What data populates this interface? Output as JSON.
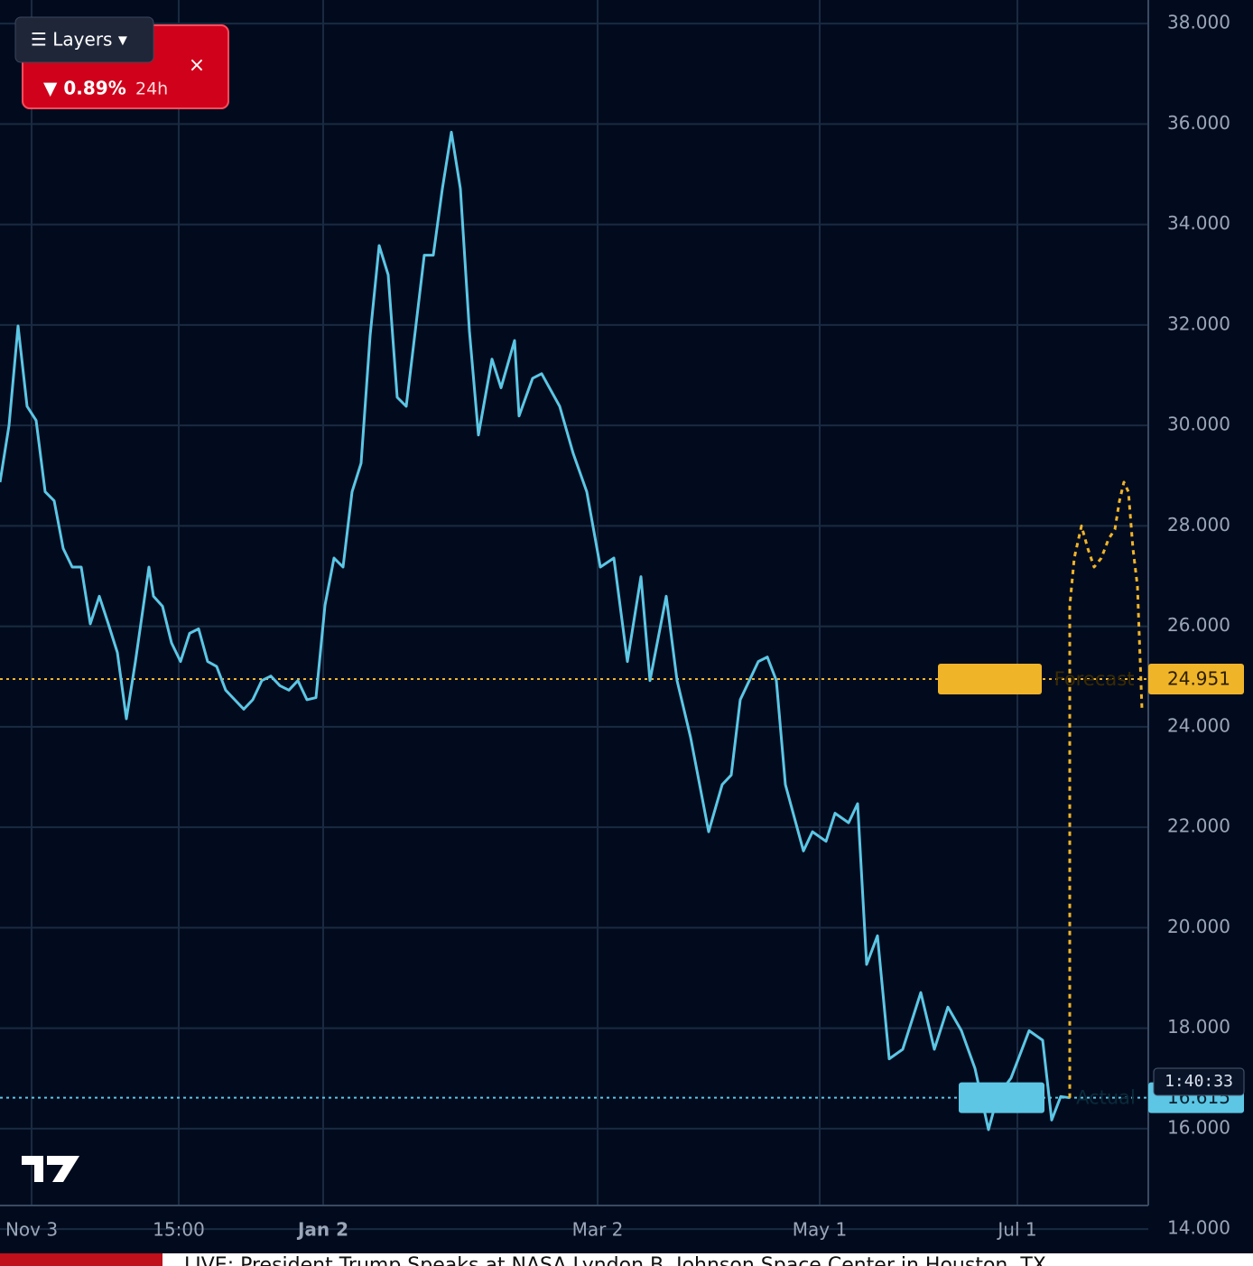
{
  "chart_data": {
    "type": "line",
    "change_label": "▼ 0.89%",
    "change_period": "24h",
    "menu_label": "☰ Layers ▾",
    "ticker_text": "LIVE: President Trump Speaks at NASA Lyndon B. Johnson Space Center in Houston, TX",
    "countdown": "1:40:33",
    "xlim": [
      0,
      127.2
    ],
    "ylim": [
      14.47,
      38.47
    ],
    "xticks": [
      {
        "value": 3.5,
        "label": "Nov 3"
      },
      {
        "value": 19.8,
        "label": "15:00"
      },
      {
        "value": 35.8,
        "label": "Jan 2"
      },
      {
        "value": 66.2,
        "label": "Mar 2"
      },
      {
        "value": 90.8,
        "label": "May 1"
      },
      {
        "value": 112.7,
        "label": "Jul 1"
      }
    ],
    "yticks": [
      {
        "value": 14,
        "label": "14.000"
      },
      {
        "value": 16,
        "label": "16.000"
      },
      {
        "value": 18,
        "label": "18.000"
      },
      {
        "value": 20,
        "label": "20.000"
      },
      {
        "value": 22,
        "label": "22.000"
      },
      {
        "value": 24,
        "label": "24.000"
      },
      {
        "value": 26,
        "label": "26.000"
      },
      {
        "value": 28,
        "label": "28.000"
      },
      {
        "value": 30,
        "label": "30.000"
      },
      {
        "value": 32,
        "label": "32.000"
      },
      {
        "value": 34,
        "label": "34.000"
      },
      {
        "value": 36,
        "label": "36.000"
      },
      {
        "value": 38,
        "label": "38.000"
      }
    ],
    "grid": true,
    "reference_lines": [
      {
        "name": "Forecast",
        "value": 24.951,
        "color": "#f0b429"
      },
      {
        "name": "Actual",
        "value": 16.615,
        "color": "#5cc6e4"
      }
    ],
    "series": [
      {
        "name": "Actual",
        "color": "#5cc6e4",
        "dashed": false,
        "x": [
          0,
          1,
          2,
          3,
          4,
          5,
          6,
          7,
          8,
          9,
          10,
          11,
          12,
          13,
          14,
          15,
          16.5,
          17,
          18,
          19,
          20,
          21,
          22,
          23,
          24,
          25,
          26,
          27,
          28,
          29,
          30,
          31,
          32,
          33,
          34,
          35,
          36,
          37,
          38,
          39,
          40,
          41,
          42,
          43,
          44,
          45,
          46,
          47,
          48,
          49,
          50,
          51,
          52,
          53,
          54.5,
          55.5,
          57,
          57.5,
          59,
          60,
          62,
          63.5,
          65,
          66.5,
          68,
          69.5,
          71,
          72,
          73.8,
          75,
          76.5,
          78.5,
          80,
          81,
          82,
          84,
          85,
          86,
          87,
          89,
          90,
          91.5,
          92.5,
          94,
          95,
          96,
          97.2,
          98.5,
          100,
          102,
          103.5,
          105,
          106.5,
          108,
          109.5,
          110.5,
          112,
          114,
          115.5,
          116.5,
          117.5,
          118.5
        ],
        "values": [
          28.87,
          30.0,
          31.98,
          30.38,
          30.1,
          28.68,
          28.5,
          27.55,
          27.18,
          27.18,
          26.05,
          26.6,
          26.05,
          25.48,
          24.16,
          25.3,
          27.18,
          26.6,
          26.4,
          25.67,
          25.3,
          25.86,
          25.95,
          25.3,
          25.2,
          24.73,
          24.54,
          24.35,
          24.54,
          24.92,
          25.01,
          24.82,
          24.73,
          24.92,
          24.54,
          24.58,
          26.42,
          27.36,
          27.18,
          28.68,
          29.25,
          31.79,
          33.58,
          33.0,
          30.56,
          30.38,
          31.88,
          33.39,
          33.39,
          34.71,
          35.84,
          34.71,
          31.88,
          29.81,
          31.32,
          30.75,
          31.69,
          30.19,
          30.94,
          31.03,
          30.38,
          29.44,
          28.68,
          27.18,
          27.36,
          25.3,
          26.99,
          24.92,
          26.6,
          24.92,
          23.79,
          21.91,
          22.85,
          23.04,
          24.54,
          25.3,
          25.39,
          24.92,
          22.85,
          21.53,
          21.91,
          21.72,
          22.28,
          22.09,
          22.47,
          19.27,
          19.84,
          17.39,
          17.58,
          18.71,
          17.58,
          18.42,
          17.95,
          17.2,
          15.98,
          16.64,
          17.01,
          17.95,
          17.76,
          16.17,
          16.64,
          16.615
        ]
      },
      {
        "name": "Forecast",
        "color": "#f0b429",
        "dashed": true,
        "x": [
          118.5,
          118.5,
          119,
          119.8,
          120.5,
          121.2,
          122,
          122.8,
          123.5,
          124,
          124.5,
          125,
          125.5,
          126,
          126.5
        ],
        "values": [
          16.615,
          26.4,
          27.36,
          28.0,
          27.55,
          27.18,
          27.36,
          27.74,
          27.93,
          28.49,
          28.87,
          28.68,
          27.55,
          26.8,
          24.35
        ]
      }
    ]
  }
}
